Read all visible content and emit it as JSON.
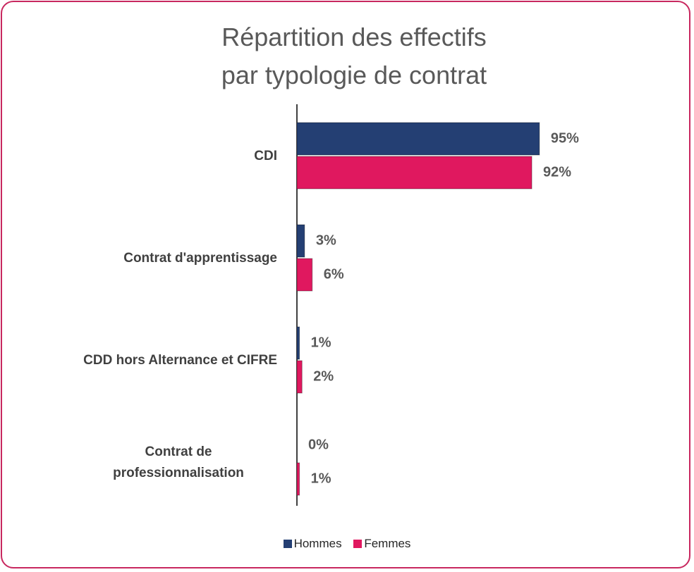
{
  "chart_data": {
    "type": "bar",
    "orientation": "horizontal",
    "title": "Répartition des effectifs par typologie de contrat",
    "categories": [
      "CDI",
      "Contrat d'apprentissage",
      "CDD hors Alternance et CIFRE",
      "Contrat de professionnalisation"
    ],
    "series": [
      {
        "name": "Hommes",
        "color": "#243f73",
        "values": [
          95,
          3,
          1,
          0
        ],
        "value_labels": [
          "95%",
          "3%",
          "1%",
          "0%"
        ]
      },
      {
        "name": "Femmes",
        "color": "#e0185f",
        "values": [
          92,
          6,
          2,
          1
        ],
        "value_labels": [
          "92%",
          "6%",
          "2%",
          "1%"
        ]
      }
    ],
    "xlim": [
      0,
      100
    ],
    "legend": "bottom"
  }
}
